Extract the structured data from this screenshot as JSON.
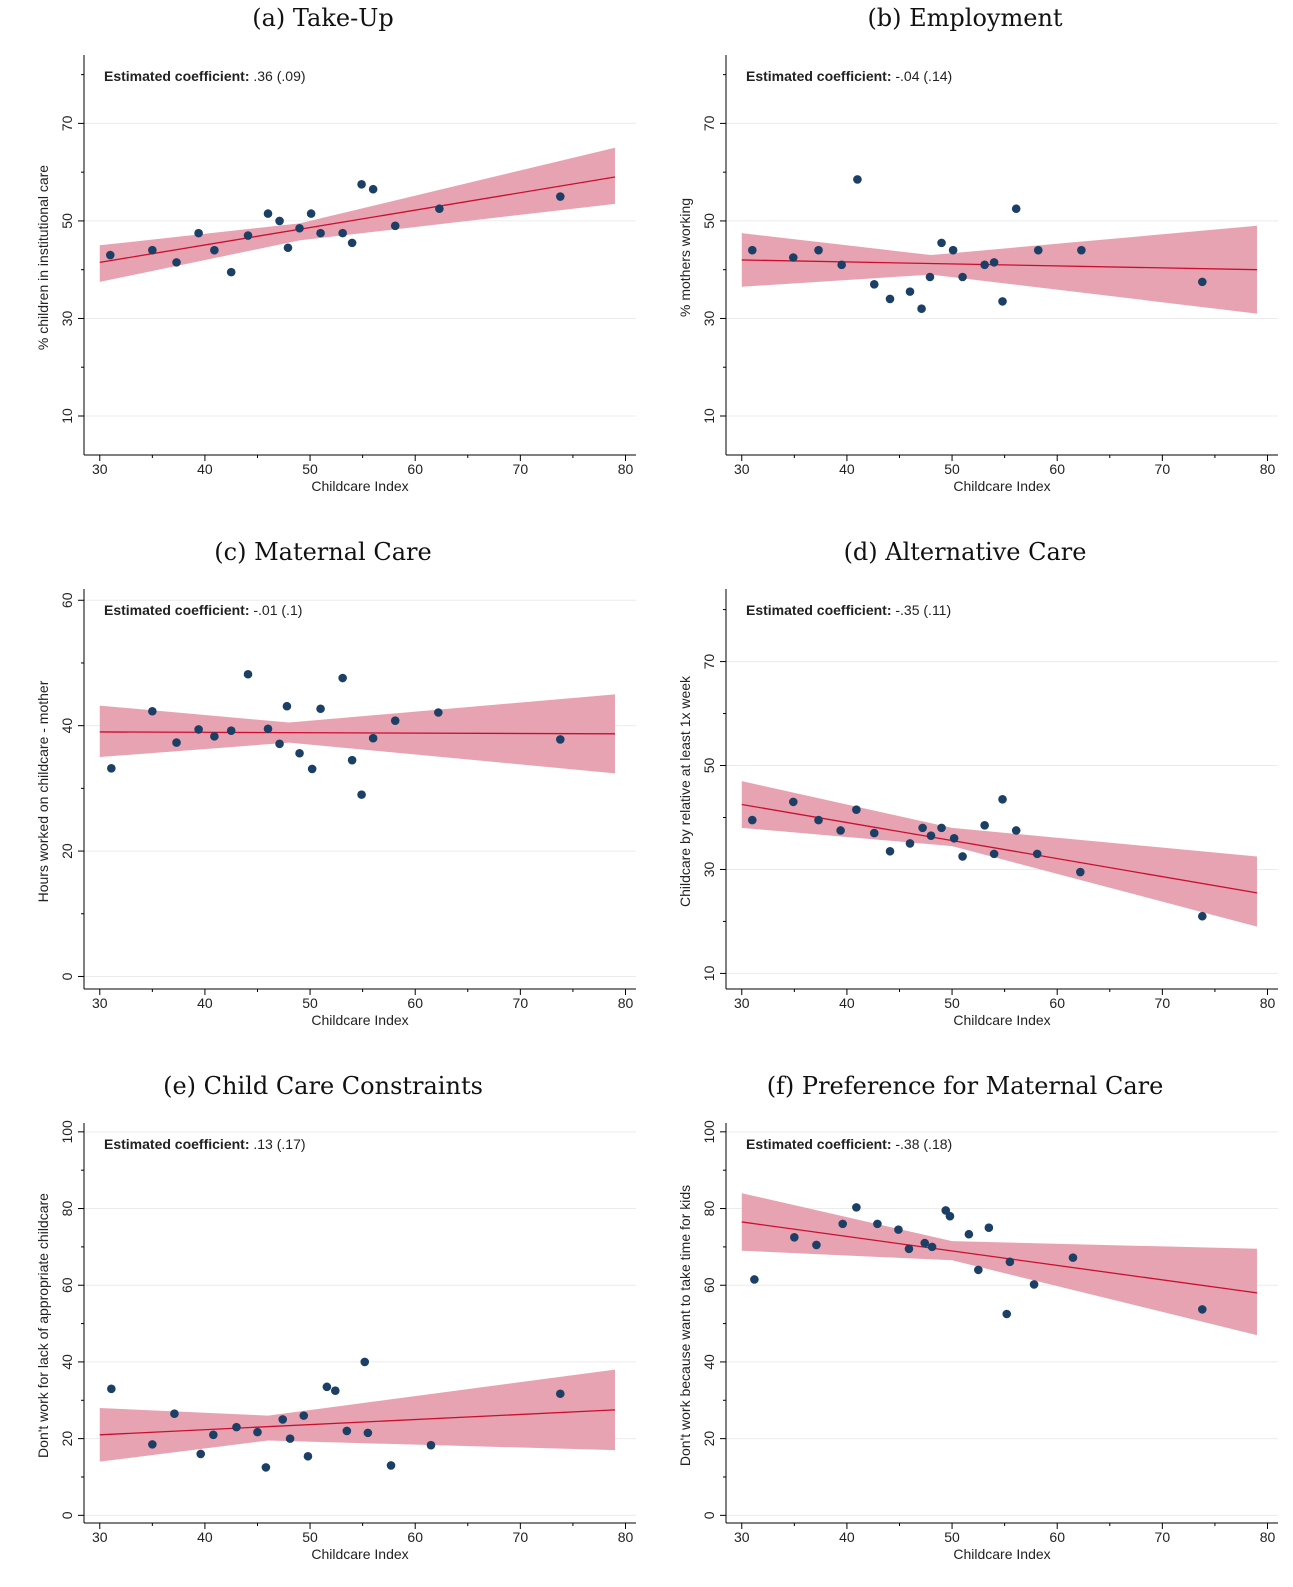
{
  "chart_data": [
    {
      "type": "scatter",
      "title": "(a) Take-Up",
      "xlabel": "Childcare Index",
      "ylabel": "% children in institutional care",
      "xlim": [
        28.5,
        81
      ],
      "ylim": [
        2,
        83
      ],
      "xticks": [
        30,
        40,
        50,
        60,
        70,
        80
      ],
      "yticks": [
        10,
        30,
        50,
        70
      ],
      "grid": true,
      "legend": "none",
      "annotation": {
        "label": "Estimated coefficient:",
        "value": ".36 (.09)"
      },
      "fit": {
        "x0": 30,
        "y0": 41.5,
        "x1": 79,
        "y1": 59
      },
      "ci": {
        "x": [
          30,
          49,
          79
        ],
        "upper": [
          45,
          49.5,
          65
        ],
        "lower": [
          37.5,
          46,
          53.5
        ]
      },
      "points": [
        [
          31,
          43
        ],
        [
          35,
          44
        ],
        [
          37.3,
          41.5
        ],
        [
          39.4,
          47.5
        ],
        [
          40.9,
          44
        ],
        [
          42.5,
          39.5
        ],
        [
          44.1,
          47
        ],
        [
          46,
          51.5
        ],
        [
          47.1,
          50
        ],
        [
          47.9,
          44.5
        ],
        [
          49,
          48.5
        ],
        [
          50.1,
          51.5
        ],
        [
          51,
          47.5
        ],
        [
          53.1,
          47.5
        ],
        [
          54,
          45.5
        ],
        [
          54.9,
          57.5
        ],
        [
          56,
          56.5
        ],
        [
          58.1,
          49
        ],
        [
          62.3,
          52.5
        ],
        [
          73.8,
          55
        ]
      ]
    },
    {
      "type": "scatter",
      "title": "(b) Employment",
      "xlabel": "Childcare Index",
      "ylabel": "% mothers working",
      "xlim": [
        28.5,
        81
      ],
      "ylim": [
        2,
        83
      ],
      "xticks": [
        30,
        40,
        50,
        60,
        70,
        80
      ],
      "yticks": [
        10,
        30,
        50,
        70
      ],
      "grid": true,
      "legend": "none",
      "annotation": {
        "label": "Estimated coefficient:",
        "value": "-.04 (.14)"
      },
      "fit": {
        "x0": 30,
        "y0": 42,
        "x1": 79,
        "y1": 40
      },
      "ci": {
        "x": [
          30,
          48,
          79
        ],
        "upper": [
          47.5,
          43,
          49
        ],
        "lower": [
          36.5,
          39,
          31
        ]
      },
      "points": [
        [
          31,
          44
        ],
        [
          34.9,
          42.5
        ],
        [
          37.3,
          44
        ],
        [
          39.5,
          41
        ],
        [
          41,
          58.5
        ],
        [
          42.6,
          37
        ],
        [
          44.1,
          34
        ],
        [
          46,
          35.5
        ],
        [
          47.1,
          32
        ],
        [
          47.9,
          38.5
        ],
        [
          49,
          45.5
        ],
        [
          50.1,
          44
        ],
        [
          51,
          38.5
        ],
        [
          53.1,
          41
        ],
        [
          54,
          41.5
        ],
        [
          54.8,
          33.5
        ],
        [
          56.1,
          52.5
        ],
        [
          58.2,
          44
        ],
        [
          62.3,
          44
        ],
        [
          73.8,
          37.5
        ]
      ]
    },
    {
      "type": "scatter",
      "title": "(c) Maternal Care",
      "xlabel": "Childcare Index",
      "ylabel": "Hours worked on childcare - mother",
      "xlim": [
        28.5,
        81
      ],
      "ylim": [
        -2,
        61
      ],
      "xticks": [
        30,
        40,
        50,
        60,
        70,
        80
      ],
      "yticks": [
        0,
        20,
        40,
        60
      ],
      "grid": true,
      "legend": "none",
      "annotation": {
        "label": "Estimated coefficient:",
        "value": "-.01 (.1)"
      },
      "fit": {
        "x0": 30,
        "y0": 39,
        "x1": 79,
        "y1": 38.7
      },
      "ci": {
        "x": [
          30,
          48,
          79
        ],
        "upper": [
          43.2,
          40.5,
          45
        ],
        "lower": [
          35,
          37.3,
          32.4
        ]
      },
      "points": [
        [
          31.1,
          33.2
        ],
        [
          35,
          42.3
        ],
        [
          37.3,
          37.3
        ],
        [
          39.4,
          39.4
        ],
        [
          40.9,
          38.3
        ],
        [
          42.5,
          39.2
        ],
        [
          44.1,
          48.2
        ],
        [
          46,
          39.5
        ],
        [
          47.1,
          37.1
        ],
        [
          47.8,
          43.1
        ],
        [
          49,
          35.6
        ],
        [
          50.2,
          33.1
        ],
        [
          51,
          42.7
        ],
        [
          53.1,
          47.6
        ],
        [
          54,
          34.5
        ],
        [
          54.9,
          29
        ],
        [
          56,
          38
        ],
        [
          58.1,
          40.8
        ],
        [
          62.2,
          42.1
        ],
        [
          73.8,
          37.8
        ]
      ]
    },
    {
      "type": "scatter",
      "title": "(d) Alternative Care",
      "xlabel": "Childcare Index",
      "ylabel": "Childcare by relative at least 1x week",
      "xlim": [
        28.5,
        81
      ],
      "ylim": [
        7,
        83
      ],
      "xticks": [
        30,
        40,
        50,
        60,
        70,
        80
      ],
      "yticks": [
        10,
        30,
        50,
        70
      ],
      "grid": true,
      "legend": "none",
      "annotation": {
        "label": "Estimated coefficient:",
        "value": "-.35 (.11)"
      },
      "fit": {
        "x0": 30,
        "y0": 42.5,
        "x1": 79,
        "y1": 25.5
      },
      "ci": {
        "x": [
          30,
          50,
          79
        ],
        "upper": [
          47,
          38,
          32.5
        ],
        "lower": [
          38,
          34.5,
          19
        ]
      },
      "points": [
        [
          31,
          39.5
        ],
        [
          34.9,
          43
        ],
        [
          37.3,
          39.5
        ],
        [
          39.4,
          37.5
        ],
        [
          40.9,
          41.5
        ],
        [
          42.6,
          37
        ],
        [
          44.1,
          33.5
        ],
        [
          46,
          35
        ],
        [
          47.2,
          38
        ],
        [
          48,
          36.5
        ],
        [
          49,
          38
        ],
        [
          50.2,
          36
        ],
        [
          51,
          32.5
        ],
        [
          53.1,
          38.5
        ],
        [
          54,
          33
        ],
        [
          54.8,
          43.5
        ],
        [
          56.1,
          37.5
        ],
        [
          58.1,
          33
        ],
        [
          62.2,
          29.5
        ],
        [
          73.8,
          21
        ]
      ]
    },
    {
      "type": "scatter",
      "title": "(e) Child Care Constraints",
      "xlabel": "Childcare Index",
      "ylabel": "Don't work for lack of appropriate childcare",
      "xlim": [
        28.5,
        81
      ],
      "ylim": [
        -2,
        101
      ],
      "xticks": [
        30,
        40,
        50,
        60,
        70,
        80
      ],
      "yticks": [
        0,
        20,
        40,
        60,
        80,
        100
      ],
      "grid": true,
      "legend": "none",
      "annotation": {
        "label": "Estimated coefficient:",
        "value": ".13 (.17)"
      },
      "fit": {
        "x0": 30,
        "y0": 21,
        "x1": 79,
        "y1": 27.5
      },
      "ci": {
        "x": [
          30,
          46,
          79
        ],
        "upper": [
          28,
          26,
          38
        ],
        "lower": [
          14,
          19.5,
          17
        ]
      },
      "points": [
        [
          31.1,
          33
        ],
        [
          35,
          18.5
        ],
        [
          37.1,
          26.5
        ],
        [
          39.6,
          16
        ],
        [
          40.8,
          21
        ],
        [
          43,
          23
        ],
        [
          45,
          21.7
        ],
        [
          45.8,
          12.5
        ],
        [
          47.4,
          25
        ],
        [
          48.1,
          20
        ],
        [
          49.4,
          26
        ],
        [
          49.8,
          15.4
        ],
        [
          51.6,
          33.5
        ],
        [
          52.4,
          32.5
        ],
        [
          53.5,
          22
        ],
        [
          55.2,
          40
        ],
        [
          55.5,
          21.5
        ],
        [
          57.7,
          13
        ],
        [
          61.5,
          18.3
        ],
        [
          73.8,
          31.7
        ]
      ]
    },
    {
      "type": "scatter",
      "title": "(f) Preference for Maternal Care",
      "xlabel": "Childcare Index",
      "ylabel": "Don't work because want to take time for kids",
      "xlim": [
        28.5,
        81
      ],
      "ylim": [
        -2,
        101
      ],
      "xticks": [
        30,
        40,
        50,
        60,
        70,
        80
      ],
      "yticks": [
        0,
        20,
        40,
        60,
        80,
        100
      ],
      "grid": true,
      "legend": "none",
      "annotation": {
        "label": "Estimated coefficient:",
        "value": "-.38 (.18)"
      },
      "fit": {
        "x0": 30,
        "y0": 76.5,
        "x1": 79,
        "y1": 58
      },
      "ci": {
        "x": [
          30,
          50,
          79
        ],
        "upper": [
          84,
          71.5,
          69.5
        ],
        "lower": [
          69,
          66.5,
          47
        ]
      },
      "points": [
        [
          31.2,
          61.5
        ],
        [
          35,
          72.5
        ],
        [
          37.1,
          70.5
        ],
        [
          39.6,
          76
        ],
        [
          40.9,
          80.3
        ],
        [
          42.9,
          76
        ],
        [
          44.9,
          74.5
        ],
        [
          45.9,
          69.5
        ],
        [
          47.4,
          71
        ],
        [
          48.1,
          70
        ],
        [
          49.4,
          79.5
        ],
        [
          49.8,
          78
        ],
        [
          51.6,
          73.3
        ],
        [
          52.5,
          64
        ],
        [
          53.5,
          75
        ],
        [
          55.2,
          52.5
        ],
        [
          55.5,
          66.1
        ],
        [
          57.8,
          60.2
        ],
        [
          61.5,
          67.2
        ],
        [
          73.8,
          53.7
        ]
      ]
    }
  ]
}
